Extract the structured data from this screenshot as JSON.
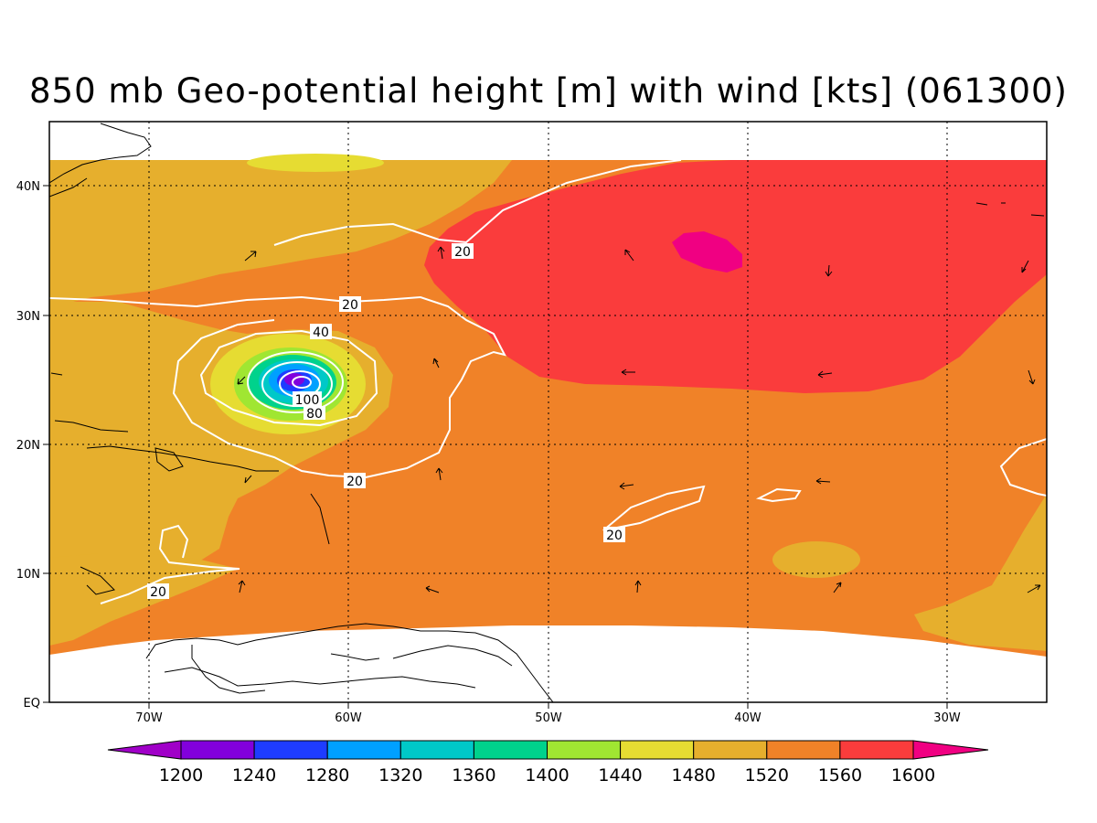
{
  "title": "850 mb Geo-potential height [m] with wind [kts] (061300)",
  "map": {
    "lon_labels": [
      "70W",
      "60W",
      "50W",
      "40W",
      "30W"
    ],
    "lat_labels": [
      "40N",
      "30N",
      "20N",
      "10N",
      "EQ"
    ],
    "contour_labels": [
      "20",
      "20",
      "40",
      "100",
      "80",
      "20",
      "20",
      "20"
    ]
  },
  "colorbar": {
    "labels": [
      "1200",
      "1240",
      "1280",
      "1320",
      "1360",
      "1400",
      "1440",
      "1480",
      "1520",
      "1560",
      "1600"
    ],
    "colors": [
      "#a000c8",
      "#8200dc",
      "#1e3cff",
      "#00a0ff",
      "#00c8c8",
      "#00d28c",
      "#a0e632",
      "#e6dc32",
      "#e6af2d",
      "#f08228",
      "#fa3c3c",
      "#f00082"
    ]
  }
}
